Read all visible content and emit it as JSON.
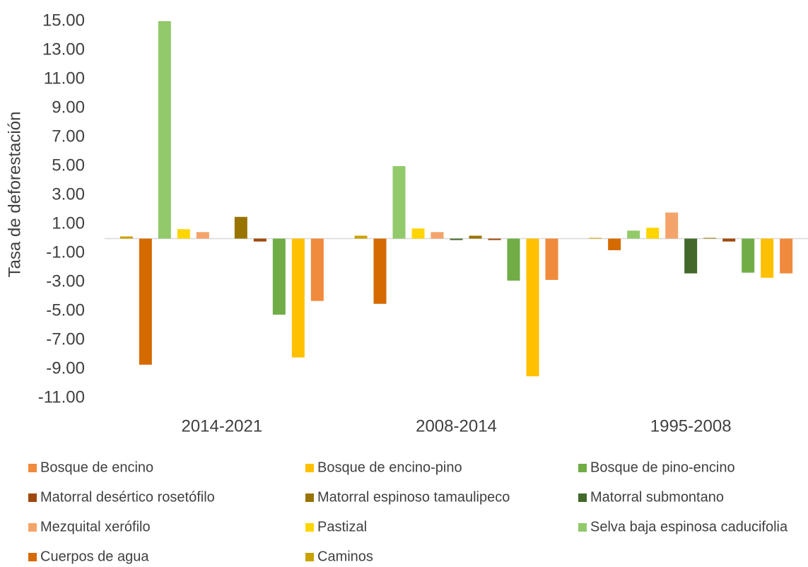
{
  "chart_data": {
    "type": "bar",
    "y_label": "Tasa de deforestación",
    "categories": [
      "2014-2021",
      "2008-2014",
      "1995-2008"
    ],
    "ylim": [
      -11,
      15
    ],
    "yticks": [
      {
        "value": -11,
        "label": "-11.00"
      },
      {
        "value": -9,
        "label": "-9.00"
      },
      {
        "value": -7,
        "label": "-7.00"
      },
      {
        "value": -5,
        "label": "-5.00"
      },
      {
        "value": -3,
        "label": "-3.00"
      },
      {
        "value": -1,
        "label": "-1.00"
      },
      {
        "value": 1,
        "label": "1.00"
      },
      {
        "value": 3,
        "label": "3.00"
      },
      {
        "value": 5,
        "label": "5.00"
      },
      {
        "value": 7,
        "label": "7.00"
      },
      {
        "value": 9,
        "label": "9.00"
      },
      {
        "value": 11,
        "label": "11.00"
      },
      {
        "value": 13,
        "label": "13.00"
      },
      {
        "value": 15,
        "label": "15.00"
      }
    ],
    "grid": false,
    "series": [
      {
        "name": "Bosque de encino",
        "color": "#f08a3c",
        "values": [
          -4.3,
          -2.85,
          -2.4
        ]
      },
      {
        "name": "Bosque de encino-pino",
        "color": "#ffc000",
        "values": [
          -8.2,
          -9.5,
          -2.7
        ]
      },
      {
        "name": "Bosque de pino-encino",
        "color": "#70ad47",
        "values": [
          -5.25,
          -2.9,
          -2.35
        ]
      },
      {
        "name": "Matorral desértico rosetófilo",
        "color": "#9e480e",
        "values": [
          -0.2,
          -0.1,
          -0.2
        ]
      },
      {
        "name": "Matorral espinoso tamaulipeco",
        "color": "#997300",
        "values": [
          1.5,
          0.2,
          0.05
        ]
      },
      {
        "name": "Matorral submontano",
        "color": "#43682b",
        "values": [
          0,
          -0.1,
          -2.4
        ]
      },
      {
        "name": "Mezquital xerófilo",
        "color": "#f4a46a",
        "values": [
          0.45,
          0.45,
          1.8
        ]
      },
      {
        "name": "Pastizal",
        "color": "#ffd500",
        "values": [
          0.65,
          0.7,
          0.75
        ]
      },
      {
        "name": "Selva baja espinosa caducifolia",
        "color": "#92c96a",
        "values": [
          15.0,
          5.0,
          0.55
        ]
      },
      {
        "name": "Cuerpos de agua",
        "color": "#d46a00",
        "values": [
          -8.7,
          -4.5,
          -0.8
        ]
      },
      {
        "name": "Caminos",
        "color": "#c9a200",
        "values": [
          0.15,
          0.2,
          0.05
        ]
      }
    ]
  }
}
